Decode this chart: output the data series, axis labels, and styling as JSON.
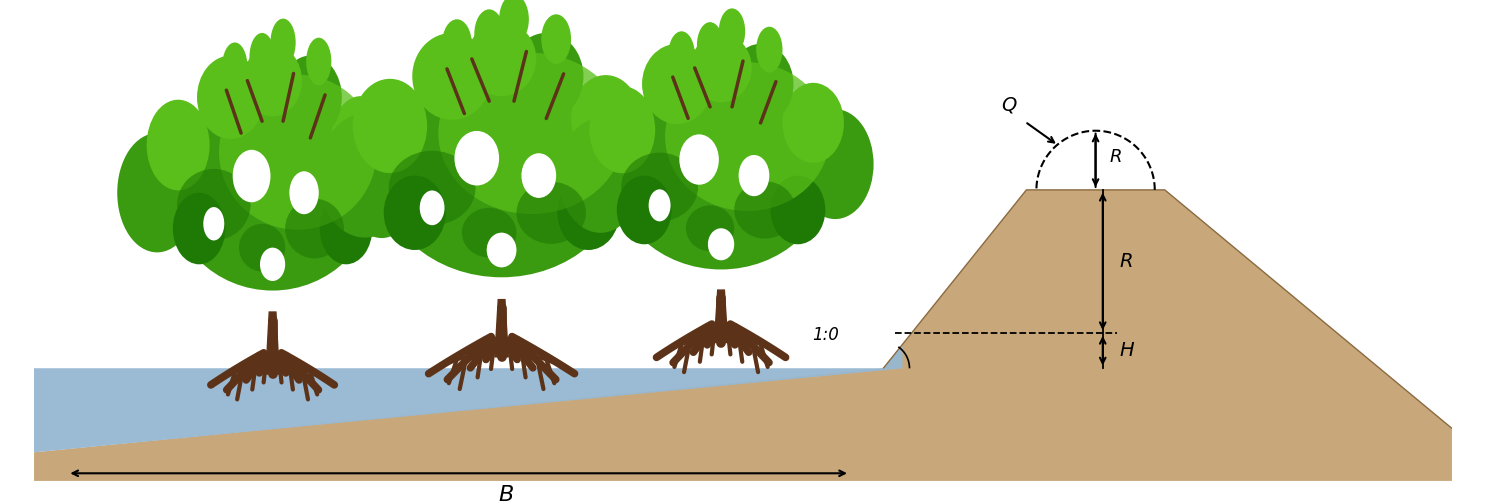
{
  "fig_width": 14.86,
  "fig_height": 5.04,
  "dpi": 100,
  "bg_color": "#ffffff",
  "sand_color": "#c8a87a",
  "water_color": "#a8c4df",
  "water_color2": "#8aafc8",
  "trunk_color": "#5c3318",
  "trunk_dark": "#3d2010",
  "leaf_green_light": "#5abf1a",
  "leaf_green_mid": "#3a9a10",
  "leaf_green_dark": "#1f7a05",
  "label_B": "B",
  "label_R_top": "R",
  "label_R_side": "R",
  "label_H": "H",
  "label_Q": "Q",
  "label_slope": "1:0"
}
